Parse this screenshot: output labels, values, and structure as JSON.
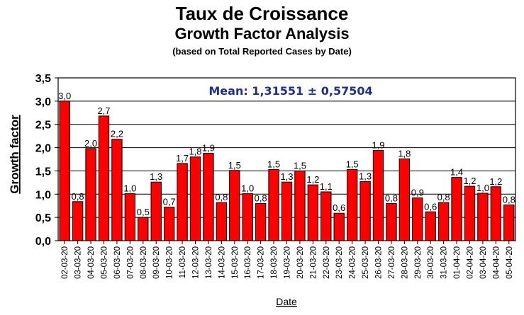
{
  "chart_data": {
    "type": "bar",
    "title": "Taux de Croissance",
    "subtitle": "Growth Factor Analysis",
    "note": "(based on Total Reported Cases by Date)",
    "annotation": "Mean: 1,31551 ± 0,57504",
    "xlabel": "Date",
    "ylabel": "Growth factor",
    "ylim": [
      0,
      3.5
    ],
    "yticks": [
      "0,0",
      "0,5",
      "1,0",
      "1,5",
      "2,0",
      "2,5",
      "3,0",
      "3,5"
    ],
    "grid": true,
    "bar_color": "#ff0000",
    "categories": [
      "02-03-20",
      "03-03-20",
      "04-03-20",
      "05-03-20",
      "06-03-20",
      "07-03-20",
      "08-03-20",
      "09-03-20",
      "10-03-20",
      "11-03-20",
      "12-03-20",
      "13-03-20",
      "14-03-20",
      "15-03-20",
      "16-03-20",
      "17-03-20",
      "18-03-20",
      "19-03-20",
      "20-03-20",
      "21-03-20",
      "22-03-20",
      "23-03-20",
      "24-03-20",
      "25-03-20",
      "26-03-20",
      "27-03-20",
      "28-03-20",
      "29-03-20",
      "30-03-20",
      "31-03-20",
      "01-04-20",
      "02-04-20",
      "03-04-20",
      "04-04-20",
      "05-04-20"
    ],
    "values": [
      3.0,
      0.84,
      1.98,
      2.68,
      2.18,
      1.01,
      0.5,
      1.26,
      0.72,
      1.66,
      1.8,
      1.88,
      0.82,
      1.51,
      1.01,
      0.8,
      1.53,
      1.26,
      1.5,
      1.2,
      1.05,
      0.59,
      1.53,
      1.27,
      1.94,
      0.8,
      1.76,
      0.92,
      0.62,
      0.82,
      1.36,
      1.17,
      1.02,
      1.16,
      0.77
    ],
    "labels": [
      "3,0",
      "0,8",
      "2,0",
      "2,7",
      "2,2",
      "1,0",
      "0,5",
      "1,3",
      "0,7",
      "1,7",
      "1,8",
      "1,9",
      "0,8",
      "1,5",
      "1,0",
      "0,8",
      "1,5",
      "1,3",
      "1,5",
      "1,2",
      "1,1",
      "0,6",
      "1,5",
      "1,3",
      "1,9",
      "0,8",
      "1,8",
      "0,9",
      "0,6",
      "0,8",
      "1,4",
      "1,2",
      "1,0",
      "1,2",
      "0,8"
    ]
  }
}
